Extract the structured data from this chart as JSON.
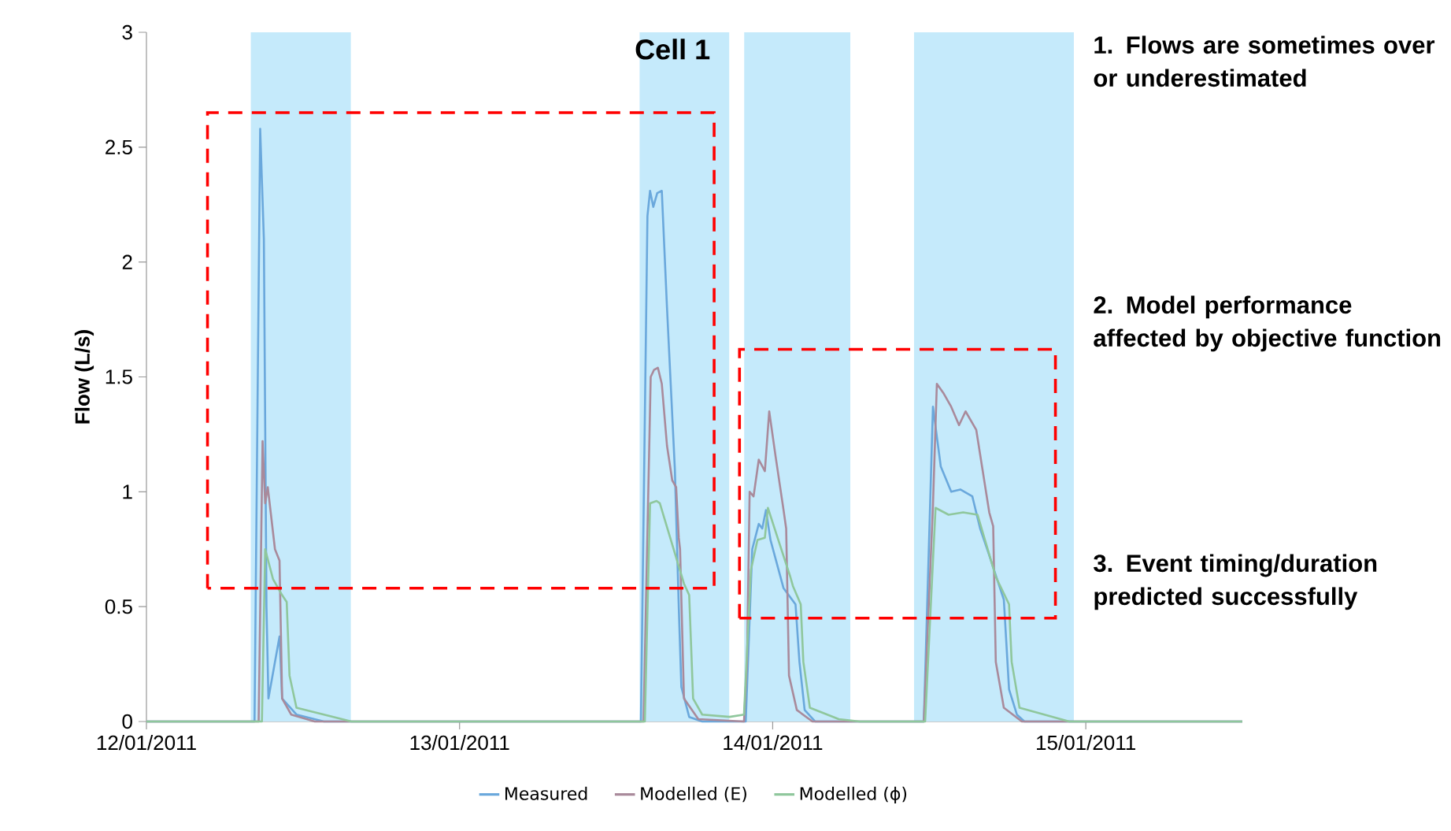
{
  "chart_data": {
    "type": "line",
    "title": "Cell 1",
    "ylabel": "Flow (L/s)",
    "xlim": [
      "2011-01-12T00:00",
      "2011-01-15T12:00"
    ],
    "ylim": [
      0,
      3
    ],
    "xticks": [
      {
        "value": "2011-01-12",
        "label": "12/01/2011"
      },
      {
        "value": "2011-01-13",
        "label": "13/01/2011"
      },
      {
        "value": "2011-01-14",
        "label": "14/01/2011"
      },
      {
        "value": "2011-01-15",
        "label": "15/01/2011"
      }
    ],
    "yticks": [
      0,
      0.5,
      1,
      1.5,
      2,
      2.5,
      3
    ],
    "legend": "bottom",
    "bands": [
      {
        "axis": "x",
        "from": "2011-01-12T08:00",
        "to": "2011-01-12T15:40",
        "color": "#c5eafb"
      },
      {
        "axis": "x",
        "from": "2011-01-13T13:48",
        "to": "2011-01-13T20:40",
        "color": "#c5eafb"
      },
      {
        "axis": "x",
        "from": "2011-01-13T21:49",
        "to": "2011-01-14T05:57",
        "color": "#c5eafb"
      },
      {
        "axis": "x",
        "from": "2011-01-14T10:50",
        "to": "2011-01-14T23:05",
        "color": "#c5eafb"
      }
    ],
    "annotations": [
      "1. Flows are sometimes over or underestimated",
      "2. Model performance affected by objective function",
      "3. Event timing/duration predicted successfully"
    ],
    "series": [
      {
        "name": "Measured",
        "color": "#6aa8dc",
        "x": [
          "2011-01-12T00:00",
          "2011-01-12T08:17",
          "2011-01-12T08:43",
          "2011-01-12T09:00",
          "2011-01-12T09:12",
          "2011-01-12T09:21",
          "2011-01-12T10:12",
          "2011-01-12T10:24",
          "2011-01-12T11:30",
          "2011-01-12T13:36",
          "2011-01-13T13:54",
          "2011-01-13T14:24",
          "2011-01-13T14:36",
          "2011-01-13T14:51",
          "2011-01-13T15:09",
          "2011-01-13T15:30",
          "2011-01-13T15:54",
          "2011-01-13T16:30",
          "2011-01-13T16:48",
          "2011-01-13T17:00",
          "2011-01-13T17:36",
          "2011-01-13T18:36",
          "2011-01-13T21:56",
          "2011-01-13T22:26",
          "2011-01-13T22:56",
          "2011-01-13T23:12",
          "2011-01-13T23:29",
          "2011-01-13T23:50",
          "2011-01-14T00:50",
          "2011-01-14T01:45",
          "2011-01-14T02:03",
          "2011-01-14T02:27",
          "2011-01-14T03:15",
          "2011-01-14T11:35",
          "2011-01-14T12:17",
          "2011-01-14T12:53",
          "2011-01-14T13:41",
          "2011-01-14T14:23",
          "2011-01-14T15:18",
          "2011-01-14T15:54",
          "2011-01-14T16:30",
          "2011-01-14T17:43",
          "2011-01-14T18:07",
          "2011-01-14T18:43",
          "2011-01-14T19:18",
          "2011-01-15T12:00"
        ],
        "values": [
          0,
          0,
          2.58,
          2.1,
          0.5,
          0.1,
          0.37,
          0.1,
          0.03,
          0,
          0,
          2.2,
          2.31,
          2.24,
          2.3,
          2.31,
          1.8,
          1.1,
          0.5,
          0.15,
          0.02,
          0,
          0,
          0.75,
          0.86,
          0.84,
          0.92,
          0.79,
          0.58,
          0.51,
          0.26,
          0.05,
          0,
          0,
          1.37,
          1.11,
          1.0,
          1.01,
          0.98,
          0.84,
          0.74,
          0.53,
          0.14,
          0.03,
          0,
          0
        ]
      },
      {
        "name": "Modelled (E)",
        "color": "#a98a9b",
        "x": [
          "2011-01-12T00:00",
          "2011-01-12T08:36",
          "2011-01-12T08:54",
          "2011-01-12T09:06",
          "2011-01-12T09:18",
          "2011-01-12T09:51",
          "2011-01-12T10:12",
          "2011-01-12T10:24",
          "2011-01-12T11:06",
          "2011-01-12T12:54",
          "2011-01-13T14:06",
          "2011-01-13T14:39",
          "2011-01-13T14:54",
          "2011-01-13T15:12",
          "2011-01-13T15:30",
          "2011-01-13T15:54",
          "2011-01-13T16:18",
          "2011-01-13T16:36",
          "2011-01-13T16:48",
          "2011-01-13T16:54",
          "2011-01-13T17:12",
          "2011-01-13T18:18",
          "2011-01-13T21:48",
          "2011-01-13T22:02",
          "2011-01-13T22:14",
          "2011-01-13T22:32",
          "2011-01-13T22:56",
          "2011-01-13T23:24",
          "2011-01-13T23:44",
          "2011-01-14T00:14",
          "2011-01-14T00:50",
          "2011-01-14T01:02",
          "2011-01-14T01:15",
          "2011-01-14T01:51",
          "2011-01-14T03:03",
          "2011-01-14T11:35",
          "2011-01-14T12:17",
          "2011-01-14T12:35",
          "2011-01-14T13:05",
          "2011-01-14T13:41",
          "2011-01-14T14:17",
          "2011-01-14T14:47",
          "2011-01-14T15:36",
          "2011-01-14T16:36",
          "2011-01-14T16:54",
          "2011-01-14T17:06",
          "2011-01-14T17:43",
          "2011-01-14T19:06",
          "2011-01-15T12:00"
        ],
        "values": [
          0,
          0,
          1.22,
          0.95,
          1.02,
          0.75,
          0.7,
          0.1,
          0.03,
          0,
          0,
          1.5,
          1.53,
          1.54,
          1.47,
          1.2,
          1.05,
          1.02,
          0.8,
          0.75,
          0.1,
          0.01,
          0,
          0.26,
          1.0,
          0.98,
          1.14,
          1.09,
          1.35,
          1.15,
          0.92,
          0.84,
          0.2,
          0.05,
          0,
          0,
          0.94,
          1.47,
          1.43,
          1.37,
          1.29,
          1.35,
          1.27,
          0.91,
          0.85,
          0.26,
          0.06,
          0,
          0
        ]
      },
      {
        "name": "Modelled (ϕ)",
        "color": "#8fc79c",
        "x": [
          "2011-01-12T00:00",
          "2011-01-12T08:51",
          "2011-01-12T09:06",
          "2011-01-12T09:42",
          "2011-01-12T10:24",
          "2011-01-12T10:45",
          "2011-01-12T10:58",
          "2011-01-12T11:30",
          "2011-01-12T15:00",
          "2011-01-12T15:42",
          "2011-01-13T14:12",
          "2011-01-13T14:36",
          "2011-01-13T15:06",
          "2011-01-13T15:21",
          "2011-01-13T17:12",
          "2011-01-13T17:36",
          "2011-01-13T17:54",
          "2011-01-13T18:36",
          "2011-01-13T20:42",
          "2011-01-13T21:48",
          "2011-01-13T22:20",
          "2011-01-13T22:50",
          "2011-01-13T23:24",
          "2011-01-13T23:38",
          "2011-01-14T00:26",
          "2011-01-14T01:21",
          "2011-01-14T01:33",
          "2011-01-14T02:09",
          "2011-01-14T02:21",
          "2011-01-14T02:51",
          "2011-01-14T05:04",
          "2011-01-14T06:40",
          "2011-01-14T11:41",
          "2011-01-14T12:29",
          "2011-01-14T13:29",
          "2011-01-14T14:36",
          "2011-01-14T15:42",
          "2011-01-14T17:06",
          "2011-01-14T18:07",
          "2011-01-14T18:19",
          "2011-01-14T18:55",
          "2011-01-14T22:44",
          "2011-01-15T12:00"
        ],
        "values": [
          0,
          0,
          0.75,
          0.62,
          0.55,
          0.52,
          0.2,
          0.06,
          0.01,
          0,
          0,
          0.95,
          0.96,
          0.95,
          0.6,
          0.55,
          0.1,
          0.03,
          0.02,
          0.03,
          0.66,
          0.79,
          0.8,
          0.93,
          0.79,
          0.63,
          0.59,
          0.51,
          0.26,
          0.06,
          0.01,
          0,
          0,
          0.93,
          0.9,
          0.91,
          0.9,
          0.63,
          0.51,
          0.26,
          0.06,
          0,
          0
        ]
      }
    ]
  }
}
